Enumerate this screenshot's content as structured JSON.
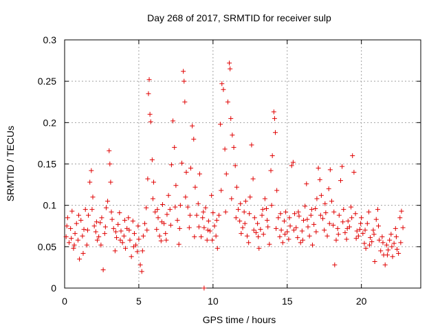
{
  "chart_data": {
    "type": "scatter",
    "title": "Day 268 of 2017, SRMTID for receiver sulp",
    "xlabel": "GPS time / hours",
    "ylabel": "SRMTID / TECUs",
    "xlim": [
      0,
      24
    ],
    "ylim": [
      0,
      0.3
    ],
    "xticks": [
      0,
      5,
      10,
      15,
      20
    ],
    "xtick_labels": [
      "0",
      "5",
      "10",
      "15",
      "20"
    ],
    "yticks": [
      0,
      0.05,
      0.1,
      0.15,
      0.2,
      0.25,
      0.3
    ],
    "ytick_labels": [
      "0",
      "0.05",
      "0.1",
      "0.15",
      "0.2",
      "0.25",
      "0.3"
    ],
    "grid": true,
    "marker": "plus",
    "color": "#e00000",
    "series": [
      {
        "name": "SRMTID",
        "points": [
          [
            0.1,
            0.062
          ],
          [
            0.2,
            0.085
          ],
          [
            0.3,
            0.055
          ],
          [
            0.4,
            0.072
          ],
          [
            0.5,
            0.093
          ],
          [
            0.6,
            0.048
          ],
          [
            0.7,
            0.066
          ],
          [
            0.8,
            0.078
          ],
          [
            0.9,
            0.058
          ],
          [
            1.0,
            0.035
          ],
          [
            1.1,
            0.082
          ],
          [
            1.2,
            0.063
          ],
          [
            1.3,
            0.071
          ],
          [
            1.4,
            0.095
          ],
          [
            1.5,
            0.052
          ],
          [
            1.6,
            0.088
          ],
          [
            1.7,
            0.128
          ],
          [
            1.8,
            0.142
          ],
          [
            1.9,
            0.11
          ],
          [
            2.0,
            0.075
          ],
          [
            2.1,
            0.068
          ],
          [
            2.2,
            0.058
          ],
          [
            2.3,
            0.062
          ],
          [
            2.4,
            0.079
          ],
          [
            2.5,
            0.085
          ],
          [
            2.6,
            0.022
          ],
          [
            2.7,
            0.066
          ],
          [
            2.8,
            0.097
          ],
          [
            2.9,
            0.105
          ],
          [
            3.0,
            0.166
          ],
          [
            3.05,
            0.15
          ],
          [
            3.1,
            0.128
          ],
          [
            3.2,
            0.083
          ],
          [
            3.3,
            0.072
          ],
          [
            3.4,
            0.045
          ],
          [
            3.5,
            0.061
          ],
          [
            3.6,
            0.077
          ],
          [
            3.7,
            0.091
          ],
          [
            3.8,
            0.069
          ],
          [
            3.9,
            0.055
          ],
          [
            4.0,
            0.063
          ],
          [
            4.1,
            0.048
          ],
          [
            4.2,
            0.072
          ],
          [
            4.3,
            0.085
          ],
          [
            4.4,
            0.058
          ],
          [
            4.5,
            0.038
          ],
          [
            4.6,
            0.081
          ],
          [
            4.7,
            0.066
          ],
          [
            4.8,
            0.052
          ],
          [
            4.9,
            0.044
          ],
          [
            5.0,
            0.059
          ],
          [
            5.1,
            0.028
          ],
          [
            5.2,
            0.02
          ],
          [
            5.3,
            0.063
          ],
          [
            5.4,
            0.078
          ],
          [
            5.5,
            0.097
          ],
          [
            5.6,
            0.132
          ],
          [
            5.65,
            0.235
          ],
          [
            5.7,
            0.252
          ],
          [
            5.75,
            0.21
          ],
          [
            5.8,
            0.201
          ],
          [
            5.9,
            0.155
          ],
          [
            6.0,
            0.128
          ],
          [
            6.1,
            0.092
          ],
          [
            6.2,
            0.071
          ],
          [
            6.3,
            0.085
          ],
          [
            6.4,
            0.063
          ],
          [
            6.5,
            0.057
          ],
          [
            6.6,
            0.101
          ],
          [
            6.7,
            0.078
          ],
          [
            6.8,
            0.066
          ],
          [
            6.9,
            0.089
          ],
          [
            7.0,
            0.112
          ],
          [
            7.1,
            0.095
          ],
          [
            7.2,
            0.149
          ],
          [
            7.3,
            0.202
          ],
          [
            7.4,
            0.17
          ],
          [
            7.5,
            0.124
          ],
          [
            7.6,
            0.082
          ],
          [
            7.7,
            0.053
          ],
          [
            7.8,
            0.1
          ],
          [
            7.9,
            0.151
          ],
          [
            8.0,
            0.262
          ],
          [
            8.05,
            0.25
          ],
          [
            8.1,
            0.225
          ],
          [
            8.2,
            0.14
          ],
          [
            8.3,
            0.098
          ],
          [
            8.4,
            0.073
          ],
          [
            8.5,
            0.145
          ],
          [
            8.6,
            0.196
          ],
          [
            8.7,
            0.18
          ],
          [
            8.8,
            0.122
          ],
          [
            8.9,
            0.088
          ],
          [
            9.0,
            0.102
          ],
          [
            9.1,
            0.138
          ],
          [
            9.2,
            0.062
          ],
          [
            9.3,
            0.085
          ],
          [
            9.4,
            0.073
          ],
          [
            9.5,
            0.097
          ],
          [
            9.6,
            0.058
          ],
          [
            9.7,
            0.081
          ],
          [
            9.8,
            0.069
          ],
          [
            9.9,
            0.112
          ],
          [
            10.0,
            0.091
          ],
          [
            10.1,
            0.075
          ],
          [
            10.2,
            0.063
          ],
          [
            10.3,
            0.048
          ],
          [
            10.4,
            0.088
          ],
          [
            10.5,
            0.198
          ],
          [
            10.6,
            0.247
          ],
          [
            10.7,
            0.24
          ],
          [
            10.8,
            0.168
          ],
          [
            10.9,
            0.138
          ],
          [
            11.0,
            0.225
          ],
          [
            11.1,
            0.272
          ],
          [
            11.15,
            0.265
          ],
          [
            11.2,
            0.205
          ],
          [
            11.3,
            0.185
          ],
          [
            11.4,
            0.17
          ],
          [
            11.5,
            0.148
          ],
          [
            11.6,
            0.122
          ],
          [
            11.7,
            0.095
          ],
          [
            11.8,
            0.081
          ],
          [
            11.9,
            0.066
          ],
          [
            12.0,
            0.073
          ],
          [
            12.1,
            0.092
          ],
          [
            12.2,
            0.105
          ],
          [
            12.3,
            0.063
          ],
          [
            12.4,
            0.055
          ],
          [
            12.5,
            0.11
          ],
          [
            12.6,
            0.173
          ],
          [
            12.7,
            0.132
          ],
          [
            12.8,
            0.085
          ],
          [
            12.9,
            0.067
          ],
          [
            13.0,
            0.078
          ],
          [
            13.1,
            0.048
          ],
          [
            13.2,
            0.071
          ],
          [
            13.3,
            0.088
          ],
          [
            13.4,
            0.065
          ],
          [
            13.5,
            0.108
          ],
          [
            13.6,
            0.096
          ],
          [
            13.7,
            0.074
          ],
          [
            13.8,
            0.053
          ],
          [
            13.9,
            0.142
          ],
          [
            14.0,
            0.16
          ],
          [
            14.1,
            0.213
          ],
          [
            14.15,
            0.205
          ],
          [
            14.2,
            0.188
          ],
          [
            14.3,
            0.118
          ],
          [
            14.4,
            0.085
          ],
          [
            14.5,
            0.062
          ],
          [
            14.6,
            0.07
          ],
          [
            14.7,
            0.055
          ],
          [
            14.8,
            0.081
          ],
          [
            14.9,
            0.092
          ],
          [
            15.0,
            0.068
          ],
          [
            15.1,
            0.059
          ],
          [
            15.2,
            0.075
          ],
          [
            15.3,
            0.148
          ],
          [
            15.4,
            0.152
          ],
          [
            15.5,
            0.09
          ],
          [
            15.6,
            0.073
          ],
          [
            15.7,
            0.061
          ],
          [
            15.8,
            0.087
          ],
          [
            15.9,
            0.055
          ],
          [
            16.0,
            0.069
          ],
          [
            16.1,
            0.082
          ],
          [
            16.2,
            0.099
          ],
          [
            16.3,
            0.126
          ],
          [
            16.4,
            0.074
          ],
          [
            16.5,
            0.063
          ],
          [
            16.6,
            0.088
          ],
          [
            16.7,
            0.052
          ],
          [
            16.8,
            0.077
          ],
          [
            16.9,
            0.096
          ],
          [
            17.0,
            0.108
          ],
          [
            17.1,
            0.145
          ],
          [
            17.2,
            0.131
          ],
          [
            17.3,
            0.112
          ],
          [
            17.4,
            0.084
          ],
          [
            17.5,
            0.07
          ],
          [
            17.6,
            0.091
          ],
          [
            17.7,
            0.063
          ],
          [
            17.8,
            0.12
          ],
          [
            17.9,
            0.143
          ],
          [
            18.0,
            0.105
          ],
          [
            18.1,
            0.076
          ],
          [
            18.2,
            0.028
          ],
          [
            18.3,
            0.058
          ],
          [
            18.4,
            0.072
          ],
          [
            18.5,
            0.088
          ],
          [
            18.6,
            0.13
          ],
          [
            18.7,
            0.147
          ],
          [
            18.8,
            0.095
          ],
          [
            18.9,
            0.067
          ],
          [
            19.0,
            0.059
          ],
          [
            19.1,
            0.081
          ],
          [
            19.2,
            0.074
          ],
          [
            19.3,
            0.098
          ],
          [
            19.4,
            0.16
          ],
          [
            19.5,
            0.14
          ],
          [
            19.6,
            0.09
          ],
          [
            19.7,
            0.069
          ],
          [
            19.8,
            0.063
          ],
          [
            19.9,
            0.071
          ],
          [
            20.0,
            0.085
          ],
          [
            20.1,
            0.066
          ],
          [
            20.2,
            0.054
          ],
          [
            20.3,
            0.048
          ],
          [
            20.4,
            0.078
          ],
          [
            20.5,
            0.092
          ],
          [
            20.6,
            0.061
          ],
          [
            20.7,
            0.056
          ],
          [
            20.8,
            0.07
          ],
          [
            20.9,
            0.032
          ],
          [
            21.0,
            0.083
          ],
          [
            21.1,
            0.095
          ],
          [
            21.2,
            0.058
          ],
          [
            21.3,
            0.045
          ],
          [
            21.4,
            0.062
          ],
          [
            21.5,
            0.04
          ],
          [
            21.6,
            0.028
          ],
          [
            21.7,
            0.052
          ],
          [
            21.8,
            0.046
          ],
          [
            21.9,
            0.058
          ],
          [
            22.0,
            0.065
          ],
          [
            22.1,
            0.038
          ],
          [
            22.2,
            0.054
          ],
          [
            22.3,
            0.072
          ],
          [
            22.4,
            0.047
          ],
          [
            22.5,
            0.042
          ],
          [
            22.6,
            0.085
          ],
          [
            22.7,
            0.093
          ],
          [
            22.8,
            0.073
          ],
          [
            9.4,
            0.0
          ],
          [
            0.15,
            0.075
          ],
          [
            0.45,
            0.06
          ],
          [
            0.65,
            0.052
          ],
          [
            0.95,
            0.088
          ],
          [
            1.25,
            0.042
          ],
          [
            1.55,
            0.07
          ],
          [
            1.85,
            0.095
          ],
          [
            2.15,
            0.08
          ],
          [
            2.45,
            0.052
          ],
          [
            2.75,
            0.074
          ],
          [
            3.15,
            0.092
          ],
          [
            3.45,
            0.068
          ],
          [
            3.75,
            0.058
          ],
          [
            4.05,
            0.082
          ],
          [
            4.35,
            0.07
          ],
          [
            4.65,
            0.05
          ],
          [
            4.95,
            0.075
          ],
          [
            5.25,
            0.045
          ],
          [
            5.55,
            0.07
          ],
          [
            5.95,
            0.108
          ],
          [
            6.25,
            0.095
          ],
          [
            6.55,
            0.08
          ],
          [
            6.85,
            0.058
          ],
          [
            7.15,
            0.076
          ],
          [
            7.45,
            0.098
          ],
          [
            7.75,
            0.072
          ],
          [
            8.15,
            0.11
          ],
          [
            8.45,
            0.088
          ],
          [
            8.75,
            0.062
          ],
          [
            9.05,
            0.074
          ],
          [
            9.35,
            0.092
          ],
          [
            9.65,
            0.07
          ],
          [
            9.95,
            0.058
          ],
          [
            10.25,
            0.082
          ],
          [
            10.55,
            0.118
          ],
          [
            10.85,
            0.092
          ],
          [
            11.25,
            0.108
          ],
          [
            11.55,
            0.085
          ],
          [
            11.85,
            0.102
          ],
          [
            12.15,
            0.078
          ],
          [
            12.45,
            0.09
          ],
          [
            12.75,
            0.07
          ],
          [
            13.05,
            0.062
          ],
          [
            13.35,
            0.095
          ],
          [
            13.65,
            0.082
          ],
          [
            13.95,
            0.1
          ],
          [
            14.25,
            0.072
          ],
          [
            14.55,
            0.09
          ],
          [
            14.85,
            0.065
          ],
          [
            15.15,
            0.085
          ],
          [
            15.45,
            0.07
          ],
          [
            15.75,
            0.092
          ],
          [
            16.05,
            0.058
          ],
          [
            16.35,
            0.083
          ],
          [
            16.65,
            0.095
          ],
          [
            16.95,
            0.068
          ],
          [
            17.25,
            0.088
          ],
          [
            17.55,
            0.102
          ],
          [
            17.85,
            0.078
          ],
          [
            18.15,
            0.092
          ],
          [
            18.45,
            0.065
          ],
          [
            18.75,
            0.08
          ],
          [
            19.05,
            0.072
          ],
          [
            19.35,
            0.085
          ],
          [
            19.65,
            0.06
          ],
          [
            19.95,
            0.078
          ],
          [
            20.25,
            0.07
          ],
          [
            20.55,
            0.052
          ],
          [
            20.85,
            0.065
          ],
          [
            21.15,
            0.075
          ],
          [
            21.45,
            0.055
          ],
          [
            21.75,
            0.04
          ],
          [
            22.05,
            0.05
          ],
          [
            22.35,
            0.062
          ],
          [
            22.65,
            0.055
          ]
        ]
      }
    ]
  }
}
